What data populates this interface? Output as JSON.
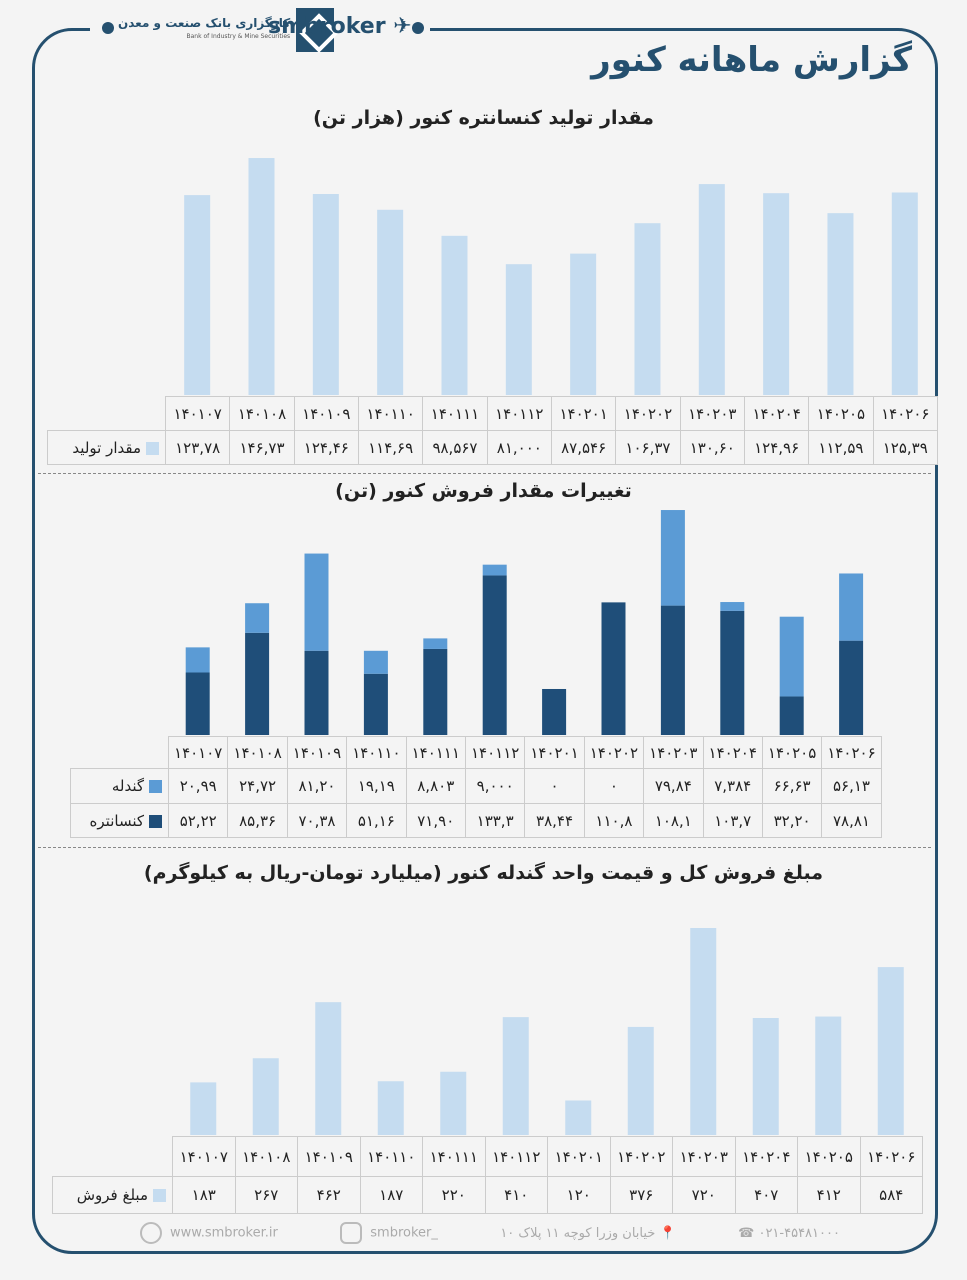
{
  "header": {
    "brand": "smbroker",
    "logo_fa": "کارگزاری بانک صنعت و معدن",
    "logo_en": "Bank of Industry & Mine Securities",
    "title": "گزارش ماهانه کنور"
  },
  "months": [
    "۱۴۰۱۰۷",
    "۱۴۰۱۰۸",
    "۱۴۰۱۰۹",
    "۱۴۰۱۱۰",
    "۱۴۰۱۱۱",
    "۱۴۰۱۱۲",
    "۱۴۰۲۰۱",
    "۱۴۰۲۰۲",
    "۱۴۰۲۰۳",
    "۱۴۰۲۰۴",
    "۱۴۰۲۰۵",
    "۱۴۰۲۰۶"
  ],
  "chart_data": [
    {
      "type": "bar",
      "title": "مقدار تولید  کنسانتره کنور (هزار تن)",
      "series": [
        {
          "name": "مقدار تولید",
          "color": "#c5dcf0",
          "values": [
            123.78,
            146.73,
            124.46,
            114.69,
            98.567,
            81.0,
            87.546,
            106.37,
            130.6,
            124.96,
            112.59,
            125.39
          ],
          "labels": [
            "۱۲۳,۷۸",
            "۱۴۶,۷۳",
            "۱۲۴,۴۶",
            "۱۱۴,۶۹",
            "۹۸,۵۶۷",
            "۸۱,۰۰۰",
            "۸۷,۵۴۶",
            "۱۰۶,۳۷",
            "۱۳۰,۶۰",
            "۱۲۴,۹۶",
            "۱۱۲,۵۹",
            "۱۲۵,۳۹"
          ]
        }
      ]
    },
    {
      "type": "stacked-bar",
      "title": "تغییرات مقدار فروش کنور (تن)",
      "series": [
        {
          "name": "گندله",
          "color": "#5b9bd5",
          "values": [
            20.99,
            24.72,
            81.2,
            19.19,
            8.803,
            9.0,
            0,
            0,
            79.84,
            7.384,
            66.63,
            56.13
          ],
          "labels": [
            "۲۰,۹۹",
            "۲۴,۷۲",
            "۸۱,۲۰",
            "۱۹,۱۹",
            "۸,۸۰۳",
            "۹,۰۰۰",
            "۰",
            "۰",
            "۷۹,۸۴",
            "۷,۳۸۴",
            "۶۶,۶۳",
            "۵۶,۱۳"
          ]
        },
        {
          "name": "کنسانتره",
          "color": "#1f4e79",
          "values": [
            52.22,
            85.36,
            70.38,
            51.16,
            71.9,
            133.3,
            38.44,
            110.8,
            108.1,
            103.7,
            32.2,
            78.81
          ],
          "labels": [
            "۵۲,۲۲",
            "۸۵,۳۶",
            "۷۰,۳۸",
            "۵۱,۱۶",
            "۷۱,۹۰",
            "۱۳۳,۳",
            "۳۸,۴۴",
            "۱۱۰,۸",
            "۱۰۸,۱",
            "۱۰۳,۷",
            "۳۲,۲۰",
            "۷۸,۸۱"
          ]
        }
      ]
    },
    {
      "type": "bar",
      "title": "مبلغ فروش کل و قیمت واحد گندله کنور (میلیارد تومان-ریال به کیلوگرم)",
      "series": [
        {
          "name": "مبلغ فروش",
          "color": "#c5dcf0",
          "values": [
            183,
            267,
            462,
            187,
            220,
            410,
            120,
            376,
            720,
            407,
            412,
            584
          ],
          "labels": [
            "۱۸۳",
            "۲۶۷",
            "۴۶۲",
            "۱۸۷",
            "۲۲۰",
            "۴۱۰",
            "۱۲۰",
            "۳۷۶",
            "۷۲۰",
            "۴۰۷",
            "۴۱۲",
            "۵۸۴"
          ]
        }
      ]
    }
  ],
  "footer": {
    "website": "www.smbroker.ir",
    "instagram": "smbroker_",
    "address": "خیابان وزرا کوچه ۱۱ پلاک ۱۰",
    "phone": "۰۲۱-۴۵۴۸۱۰۰۰"
  }
}
